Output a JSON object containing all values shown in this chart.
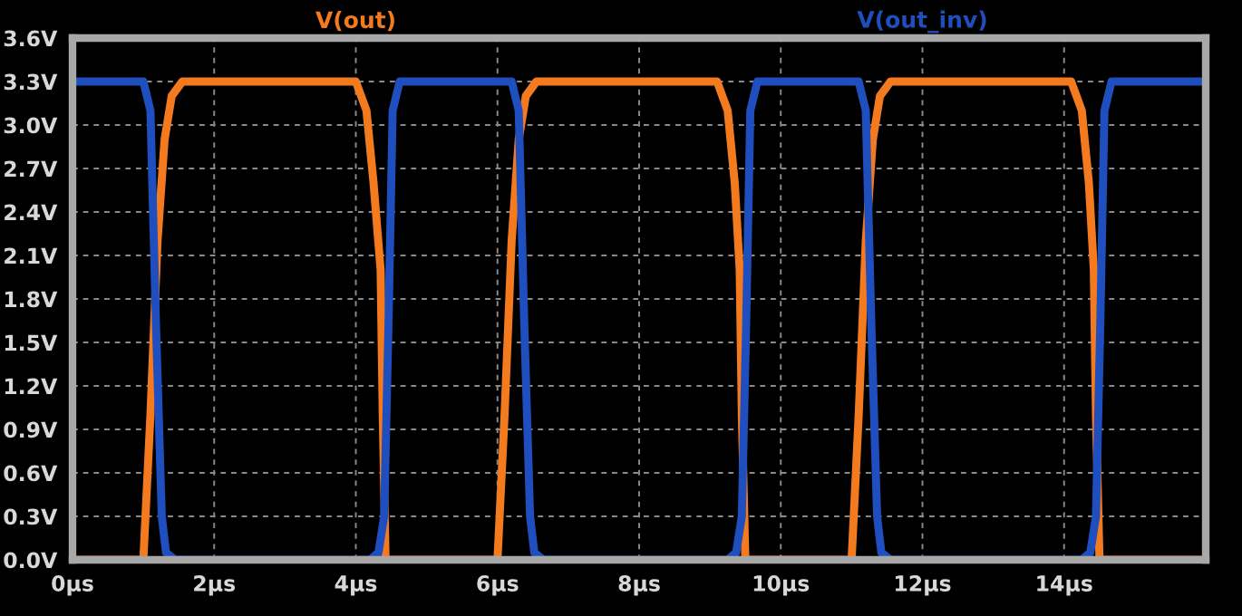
{
  "chart_data": {
    "type": "line",
    "xlim": [
      0,
      16
    ],
    "ylim": [
      0,
      3.6
    ],
    "xticks": [
      {
        "value": 0,
        "label": "0µs"
      },
      {
        "value": 2,
        "label": "2µs"
      },
      {
        "value": 4,
        "label": "4µs"
      },
      {
        "value": 6,
        "label": "6µs"
      },
      {
        "value": 8,
        "label": "8µs"
      },
      {
        "value": 10,
        "label": "10µs"
      },
      {
        "value": 12,
        "label": "12µs"
      },
      {
        "value": 14,
        "label": "14µs"
      }
    ],
    "yticks": [
      {
        "value": 0,
        "label": "0.0V"
      },
      {
        "value": 0.3,
        "label": "0.3V"
      },
      {
        "value": 0.6,
        "label": "0.6V"
      },
      {
        "value": 0.9,
        "label": "0.9V"
      },
      {
        "value": 1.2,
        "label": "1.2V"
      },
      {
        "value": 1.5,
        "label": "1.5V"
      },
      {
        "value": 1.8,
        "label": "1.8V"
      },
      {
        "value": 2.1,
        "label": "2.1V"
      },
      {
        "value": 2.4,
        "label": "2.4V"
      },
      {
        "value": 2.7,
        "label": "2.7V"
      },
      {
        "value": 3.0,
        "label": "3.0V"
      },
      {
        "value": 3.3,
        "label": "3.3V"
      },
      {
        "value": 3.6,
        "label": "3.6V"
      }
    ],
    "grid": true,
    "marker": "none",
    "line_style": "solid",
    "series": [
      {
        "name": "V(out)",
        "color": "#f47a20",
        "x": [
          0,
          1.0,
          1.1,
          1.2,
          1.3,
          1.4,
          1.55,
          4.0,
          4.15,
          4.25,
          4.35,
          4.38,
          4.42,
          6.0,
          6.1,
          6.2,
          6.3,
          6.4,
          6.55,
          9.1,
          9.25,
          9.35,
          9.42,
          9.45,
          9.5,
          11.0,
          11.1,
          11.2,
          11.3,
          11.4,
          11.55,
          14.1,
          14.25,
          14.35,
          14.42,
          14.45,
          14.5,
          16
        ],
        "values": [
          0,
          0,
          1.0,
          2.2,
          2.9,
          3.2,
          3.3,
          3.3,
          3.1,
          2.6,
          2.0,
          1.0,
          0,
          0,
          1.0,
          2.2,
          2.9,
          3.2,
          3.3,
          3.3,
          3.1,
          2.6,
          2.0,
          1.0,
          0,
          0,
          1.0,
          2.2,
          2.9,
          3.2,
          3.3,
          3.3,
          3.1,
          2.6,
          2.0,
          1.0,
          0,
          0
        ]
      },
      {
        "name": "V(out_inv)",
        "color": "#1f4fbf",
        "x": [
          0,
          1.0,
          1.1,
          1.18,
          1.26,
          1.32,
          1.45,
          4.2,
          4.32,
          4.4,
          4.46,
          4.52,
          4.62,
          6.2,
          6.3,
          6.38,
          6.46,
          6.52,
          6.65,
          9.25,
          9.37,
          9.45,
          9.51,
          9.57,
          9.67,
          11.1,
          11.2,
          11.28,
          11.36,
          11.42,
          11.55,
          14.25,
          14.37,
          14.45,
          14.51,
          14.57,
          14.67,
          16
        ],
        "values": [
          3.3,
          3.3,
          3.1,
          1.6,
          0.3,
          0.05,
          0,
          0,
          0.05,
          0.3,
          1.6,
          3.1,
          3.3,
          3.3,
          3.1,
          1.6,
          0.3,
          0.05,
          0,
          0,
          0.05,
          0.3,
          1.6,
          3.1,
          3.3,
          3.3,
          3.1,
          1.6,
          0.3,
          0.05,
          0,
          0,
          0.05,
          0.3,
          1.6,
          3.1,
          3.3,
          3.3
        ]
      }
    ]
  }
}
